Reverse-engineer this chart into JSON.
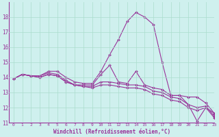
{
  "xlabel": "Windchill (Refroidissement éolien,°C)",
  "background_color": "#cff0ee",
  "grid_color": "#aaddcc",
  "line_color": "#993399",
  "xlim": [
    -0.5,
    23
  ],
  "ylim": [
    11,
    19
  ],
  "yticks": [
    11,
    12,
    13,
    14,
    15,
    16,
    17,
    18
  ],
  "xticks": [
    0,
    1,
    2,
    3,
    4,
    5,
    6,
    7,
    8,
    9,
    10,
    11,
    12,
    13,
    14,
    15,
    16,
    17,
    18,
    19,
    20,
    21,
    22,
    23
  ],
  "series": [
    [
      13.9,
      14.2,
      14.1,
      14.1,
      14.4,
      14.4,
      14.0,
      13.7,
      13.6,
      13.6,
      14.4,
      15.5,
      16.5,
      17.7,
      18.3,
      18.0,
      17.5,
      15.0,
      12.8,
      12.8,
      12.2,
      11.1,
      12.0,
      11.6
    ],
    [
      13.9,
      14.2,
      14.1,
      14.1,
      14.3,
      14.2,
      13.8,
      13.5,
      13.5,
      13.5,
      14.2,
      14.8,
      13.7,
      13.6,
      14.4,
      13.5,
      13.3,
      13.2,
      12.8,
      12.8,
      12.7,
      12.7,
      12.3,
      11.6
    ],
    [
      13.9,
      14.2,
      14.1,
      14.0,
      14.2,
      14.1,
      13.7,
      13.5,
      13.4,
      13.4,
      13.7,
      13.7,
      13.6,
      13.5,
      13.5,
      13.4,
      13.1,
      13.0,
      12.7,
      12.6,
      12.2,
      12.0,
      12.1,
      11.4
    ],
    [
      13.9,
      14.2,
      14.1,
      14.0,
      14.2,
      14.1,
      13.7,
      13.5,
      13.4,
      13.3,
      13.5,
      13.5,
      13.4,
      13.3,
      13.3,
      13.2,
      12.9,
      12.8,
      12.5,
      12.4,
      12.0,
      11.8,
      12.0,
      11.3
    ]
  ]
}
